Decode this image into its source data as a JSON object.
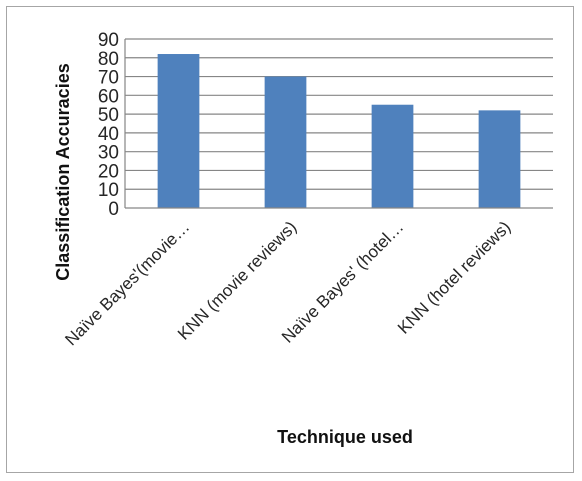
{
  "chart_data": {
    "type": "bar",
    "title": "",
    "xlabel": "Technique used",
    "ylabel": "Classification Accuracies",
    "categories": [
      "Naïve Bayes'(movie…",
      "KNN (movie reviews)",
      "Naïve Bayes' (hotel…",
      "KNN (hotel reviews)"
    ],
    "values": [
      82,
      70,
      55,
      52
    ],
    "ylim": [
      0,
      90
    ],
    "yticks": [
      "0",
      "10",
      "20",
      "30",
      "40",
      "50",
      "60",
      "70",
      "80",
      "90"
    ],
    "grid": true,
    "legend": "none",
    "bar_color": "#4f81bd",
    "grid_color": "#868686"
  }
}
